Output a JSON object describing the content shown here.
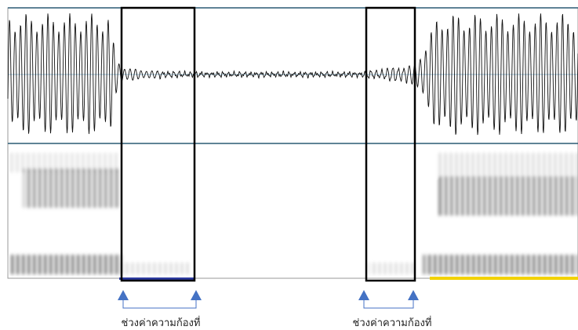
{
  "annotations": [
    {
      "label": "ช่วงค่าความก้องที่"
    },
    {
      "label": "ช่วงค่าความก้องที่"
    }
  ]
}
